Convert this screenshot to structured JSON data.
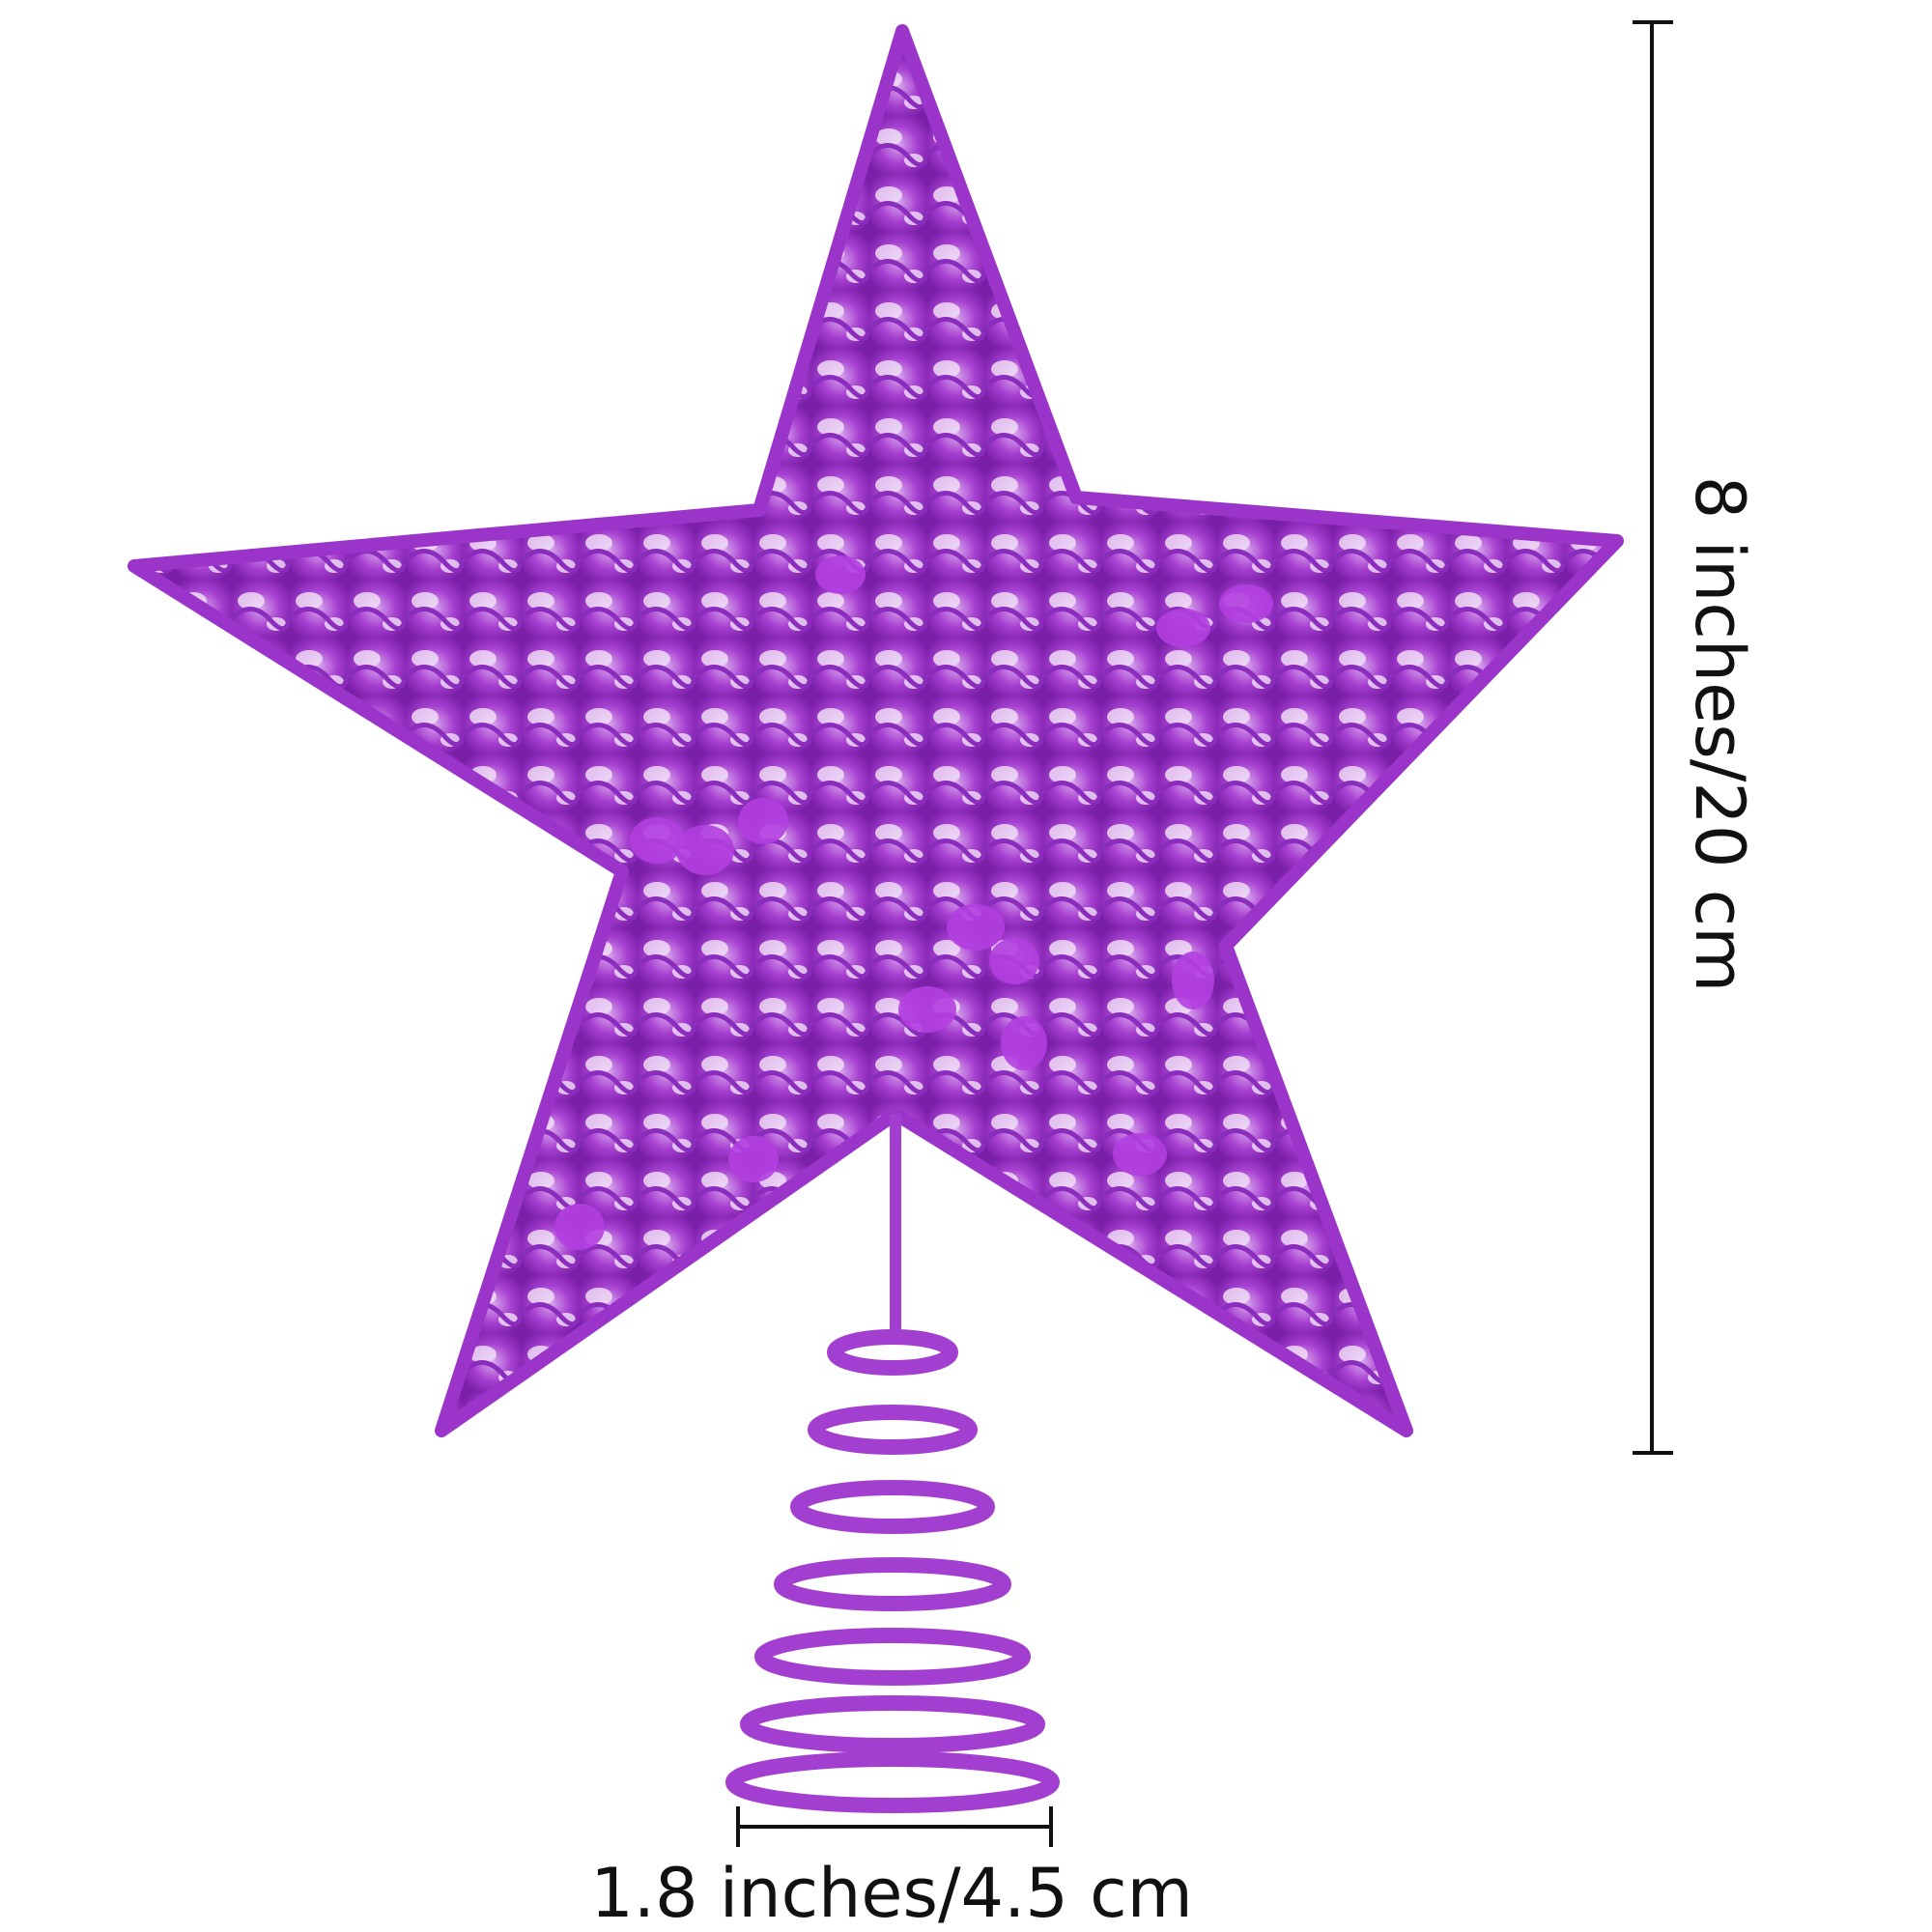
{
  "dimensions": {
    "height": "8 inches/20 cm",
    "width": "1.8 inches/4.5 cm"
  }
}
